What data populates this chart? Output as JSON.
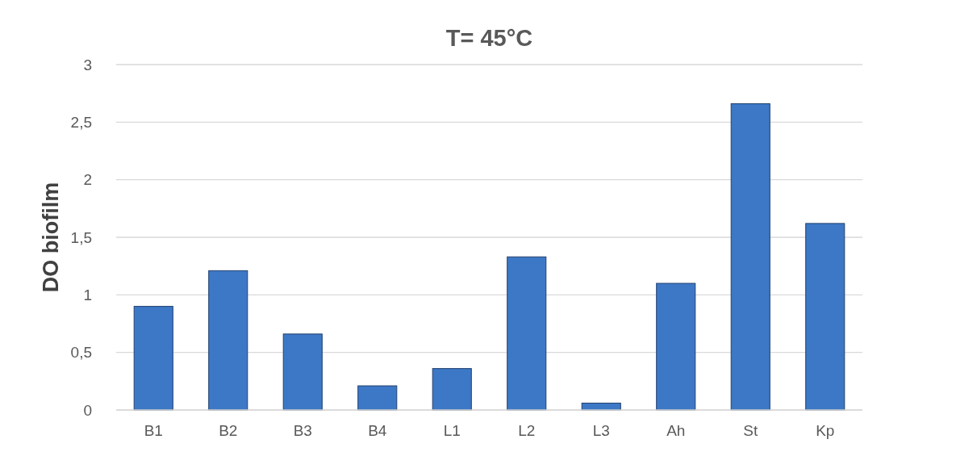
{
  "chart_data": {
    "type": "bar",
    "title": "T= 45°C",
    "ylabel": "DO biofilm",
    "categories": [
      "B1",
      "B2",
      "B3",
      "B4",
      "L1",
      "L2",
      "L3",
      "Ah",
      "St",
      "Kp"
    ],
    "values": [
      0.9,
      1.21,
      0.66,
      0.21,
      0.36,
      1.33,
      0.06,
      1.1,
      2.66,
      1.62
    ],
    "color": "#3d78c6",
    "ylim": [
      0,
      3
    ],
    "yticks": [
      0,
      {
        "value": 0.5,
        "label": "0,5"
      },
      1,
      {
        "value": 1.5,
        "label": "1,5"
      },
      2,
      {
        "value": 2.5,
        "label": "2,5"
      },
      3
    ],
    "grid": "y"
  }
}
